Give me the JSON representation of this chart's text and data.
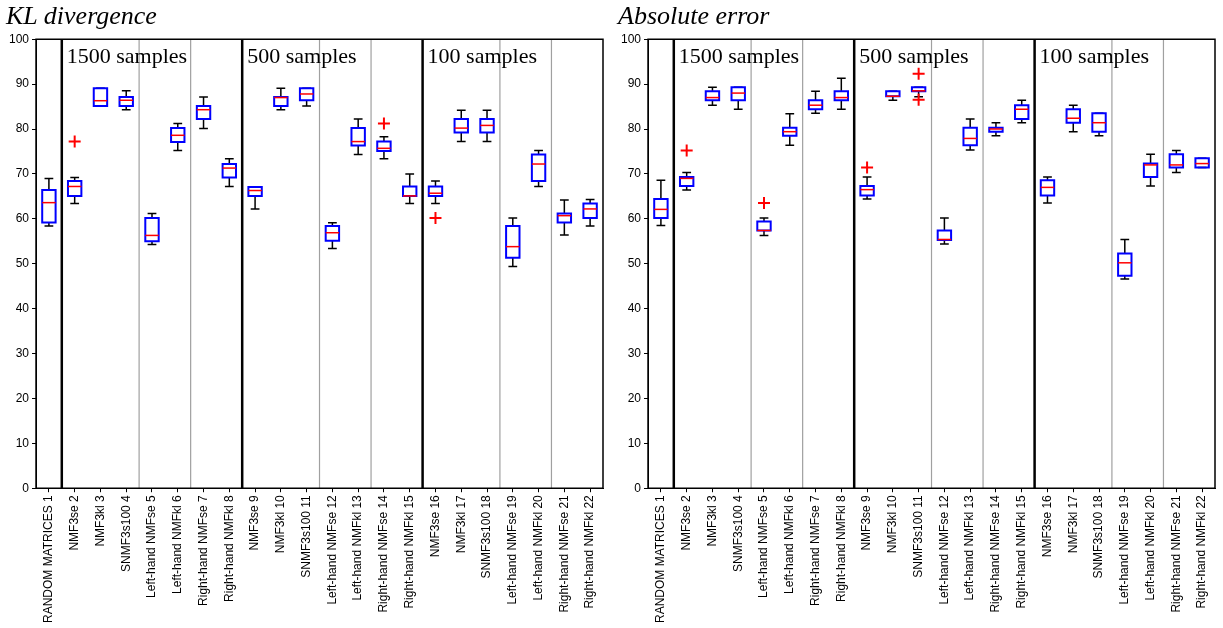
{
  "chart_data": [
    {
      "type": "box",
      "title": "KL divergence",
      "color": "#0000ff",
      "categories": [
        "RANDOM MATRICES 1",
        "NMF3se 2",
        "NMF3kl 3",
        "SNMF3s100 4",
        "Left-hand NMFse 5",
        "Left-hand NMFkl 6",
        "Right-hand NMFse 7",
        "Right-hand NMFkl 8",
        "NMF3se 9",
        "NMF3kl 10",
        "SNMF3s100 11",
        "Left-hand NMFse 12",
        "Left-hand NMFkl 13",
        "Right-hand NMFse 14",
        "Right-hand NMFkl 15",
        "NMF3se 16",
        "NMF3kl 17",
        "SNMF3s100 18",
        "Left-hand NMFse 19",
        "Left-hand NMFkl 20",
        "Right-hand NMFse 21",
        "Right-hand NMFkl 22"
      ],
      "boxes": [
        {
          "low": 58.4,
          "q1": 59.2,
          "median": 63.6,
          "q3": 66.4,
          "high": 69
        },
        {
          "low": 63.4,
          "q1": 65.1,
          "median": 67.2,
          "q3": 68.4,
          "high": 69.2,
          "outliers": [
            77.2
          ]
        },
        {
          "low": 85.1,
          "q1": 85.1,
          "median": 86.3,
          "q3": 89.1,
          "high": 89.1
        },
        {
          "low": 84.3,
          "q1": 85.1,
          "median": 86.4,
          "q3": 87.1,
          "high": 88.5
        },
        {
          "low": 54.3,
          "q1": 55,
          "median": 56.3,
          "q3": 60.2,
          "high": 61.2
        },
        {
          "low": 75.2,
          "q1": 77.1,
          "median": 78.6,
          "q3": 80.2,
          "high": 81.2
        },
        {
          "low": 80.1,
          "q1": 82.2,
          "median": 84.3,
          "q3": 85.1,
          "high": 87.1
        },
        {
          "low": 67.2,
          "q1": 69.2,
          "median": 71.3,
          "q3": 72.2,
          "high": 73.4
        },
        {
          "low": 62.2,
          "q1": 65.1,
          "median": 66.3,
          "q3": 67.1,
          "high": 67.1
        },
        {
          "low": 84.3,
          "q1": 85.1,
          "median": 87,
          "q3": 87.1,
          "high": 89.1
        },
        {
          "low": 85.1,
          "q1": 86.4,
          "median": 87.8,
          "q3": 89.1,
          "high": 89.1
        },
        {
          "low": 53.4,
          "q1": 55.1,
          "median": 56.9,
          "q3": 58.4,
          "high": 59.1
        },
        {
          "low": 74.3,
          "q1": 76.3,
          "median": 77.2,
          "q3": 80.2,
          "high": 82.2
        },
        {
          "low": 73.4,
          "q1": 75.1,
          "median": 75.7,
          "q3": 77.2,
          "high": 78.3,
          "outliers": [
            81.2
          ]
        },
        {
          "low": 63.4,
          "q1": 65.1,
          "median": 65.1,
          "q3": 67.2,
          "high": 70
        },
        {
          "low": 63.4,
          "q1": 65.1,
          "median": 65.7,
          "q3": 67.2,
          "high": 68.4,
          "outliers": [
            60.2
          ]
        },
        {
          "low": 77.2,
          "q1": 79.2,
          "median": 80.2,
          "q3": 82.2,
          "high": 84.2
        },
        {
          "low": 77.2,
          "q1": 79.2,
          "median": 80.8,
          "q3": 82.2,
          "high": 84.2
        },
        {
          "low": 49.4,
          "q1": 51.3,
          "median": 53.8,
          "q3": 58.4,
          "high": 60.2
        },
        {
          "low": 67.2,
          "q1": 68.4,
          "median": 72.2,
          "q3": 74.3,
          "high": 75.2
        },
        {
          "low": 56.4,
          "q1": 59.2,
          "median": 60.7,
          "q3": 61.2,
          "high": 64.2
        },
        {
          "low": 58.4,
          "q1": 60.2,
          "median": 62.2,
          "q3": 63.4,
          "high": 64.3
        }
      ],
      "ylim": [
        0,
        100
      ],
      "yticks": [
        0,
        10,
        20,
        30,
        40,
        50,
        60,
        70,
        80,
        90,
        100
      ],
      "annotations": [
        "1500 samples",
        "500 samples",
        "100 samples"
      ]
    },
    {
      "type": "box",
      "title": "Absolute error",
      "color": "#0000ff",
      "categories": [
        "RANDOM MATRICES 1",
        "NMF3se 2",
        "NMF3kl 3",
        "SNMF3s100 4",
        "Left-hand NMFse 5",
        "Left-hand NMFkl 6",
        "Right-hand NMFse 7",
        "Right-hand NMFkl 8",
        "NMF3se 9",
        "NMF3kl 10",
        "SNMF3s100 11",
        "Left-hand NMFse 12",
        "Left-hand NMFkl 13",
        "Right-hand NMFse 14",
        "Right-hand NMFkl 15",
        "NMF3se 16",
        "NMF3kl 17",
        "SNMF3s100 18",
        "Left-hand NMFse 19",
        "Left-hand NMFkl 20",
        "Right-hand NMFse 21",
        "Right-hand NMFkl 22"
      ],
      "boxes": [
        {
          "low": 58.5,
          "q1": 60.2,
          "median": 62.1,
          "q3": 64.4,
          "high": 68.6
        },
        {
          "low": 66.4,
          "q1": 67.3,
          "median": 69,
          "q3": 69.3,
          "high": 70.3,
          "outliers": [
            75.2
          ]
        },
        {
          "low": 85.3,
          "q1": 86.4,
          "median": 87,
          "q3": 88.4,
          "high": 89.3
        },
        {
          "low": 84.4,
          "q1": 86.4,
          "median": 88,
          "q3": 89.3,
          "high": 89.3
        },
        {
          "low": 56.3,
          "q1": 57.4,
          "median": 57.4,
          "q3": 59.4,
          "high": 60.2,
          "outliers": [
            63.5
          ]
        },
        {
          "low": 76.4,
          "q1": 78.5,
          "median": 79.4,
          "q3": 80.3,
          "high": 83.4
        },
        {
          "low": 83.5,
          "q1": 84.4,
          "median": 85.3,
          "q3": 86.4,
          "high": 88.4
        },
        {
          "low": 84.4,
          "q1": 86.4,
          "median": 87,
          "q3": 88.4,
          "high": 91.3
        },
        {
          "low": 64.4,
          "q1": 65.2,
          "median": 66.5,
          "q3": 67.3,
          "high": 69.3,
          "outliers": [
            71.4
          ]
        },
        {
          "low": 86.4,
          "q1": 87.3,
          "median": 87.3,
          "q3": 88.4,
          "high": 88.4
        },
        {
          "low": 87.2,
          "q1": 88.4,
          "median": 88.5,
          "q3": 89.3,
          "high": 89.3,
          "outliers": [
            92.3,
            86.5
          ]
        },
        {
          "low": 54.4,
          "q1": 55.3,
          "median": 55.4,
          "q3": 57.4,
          "high": 60.2
        },
        {
          "low": 75.3,
          "q1": 76.4,
          "median": 77.9,
          "q3": 80.3,
          "high": 82.2
        },
        {
          "low": 78.5,
          "q1": 79.4,
          "median": 80,
          "q3": 80.3,
          "high": 81.4
        },
        {
          "low": 81.4,
          "q1": 82.2,
          "median": 84.4,
          "q3": 85.3,
          "high": 86.4
        },
        {
          "low": 63.5,
          "q1": 65.2,
          "median": 67,
          "q3": 68.6,
          "high": 69.3
        },
        {
          "low": 79.4,
          "q1": 81.4,
          "median": 82.4,
          "q3": 84.4,
          "high": 85.3
        },
        {
          "low": 78.5,
          "q1": 79.4,
          "median": 81.4,
          "q3": 83.5,
          "high": 83.5
        },
        {
          "low": 46.6,
          "q1": 47.3,
          "median": 50.2,
          "q3": 52.3,
          "high": 55.4
        },
        {
          "low": 67.3,
          "q1": 69.3,
          "median": 72,
          "q3": 72.3,
          "high": 74.4
        },
        {
          "low": 70.3,
          "q1": 71.4,
          "median": 72,
          "q3": 74.4,
          "high": 75.2
        },
        {
          "low": 71.4,
          "q1": 71.4,
          "median": 72.3,
          "q3": 73.5,
          "high": 73.5
        }
      ],
      "ylim": [
        0,
        100
      ],
      "yticks": [
        0,
        10,
        20,
        30,
        40,
        50,
        60,
        70,
        80,
        90,
        100
      ],
      "annotations": [
        "1500 samples",
        "500 samples",
        "100 samples"
      ]
    }
  ]
}
